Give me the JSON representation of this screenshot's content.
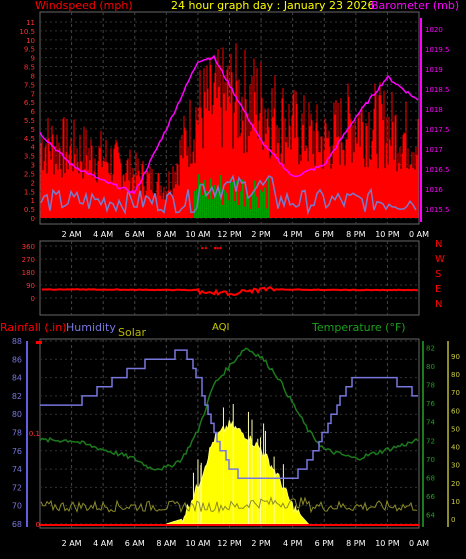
{
  "header": {
    "title": "24 hour graph day : January 23 2026",
    "left_label": "Windspeed (mph)",
    "right_label": "Barometer (mb)"
  },
  "time_axis": [
    "2 AM",
    "4 AM",
    "6 AM",
    "8 AM",
    "10 AM",
    "12 PM",
    "2 PM",
    "4 PM",
    "6 PM",
    "8 PM",
    "10 PM",
    "0 AM"
  ],
  "wind_panel": {
    "y_ticks": [
      0,
      0.5,
      1,
      1.5,
      2,
      2.5,
      3,
      3.5,
      4,
      4.5,
      5,
      5.5,
      6,
      6.5,
      7,
      7.5,
      8,
      8.5,
      9,
      9.5,
      10,
      10.5,
      11
    ],
    "baro_ticks": [
      1015.5,
      1016,
      1016.5,
      1017,
      1017.5,
      1018,
      1018.5,
      1019,
      1019.5,
      1020
    ]
  },
  "dir_panel": {
    "y_ticks": [
      "360",
      "270",
      "180",
      "90",
      "0"
    ],
    "compass": [
      "N",
      "W",
      "S",
      "E",
      "N"
    ]
  },
  "lower_panel": {
    "labels": {
      "rain": "Rainfall (.in)",
      "humidity": "Humidity",
      "solar": "Solar",
      "aqi": "AQI",
      "temp": "Temperature (°F)"
    },
    "hum_ticks": [
      68,
      70,
      72,
      74,
      76,
      78,
      80,
      82,
      84,
      86,
      88
    ],
    "rain_ticks": [
      "0",
      "0.1"
    ],
    "temp_ticks": [
      64,
      66,
      68,
      70,
      72,
      74,
      76,
      78,
      80,
      82
    ],
    "aqi_ticks": [
      0,
      10,
      20,
      30,
      40,
      50,
      60,
      70,
      80,
      90
    ]
  },
  "colors": {
    "wind_gust": "#ff0000",
    "wind_avg": "#7a7acc",
    "wind_green": "#00a000",
    "barometer": "#ff00ff",
    "humidity": "#7777dd",
    "temperature": "#1c7a1c",
    "solar": "#ffff00",
    "aqi": "#8b8b2a"
  },
  "chart_data": [
    {
      "type": "line",
      "series": [
        {
          "name": "Barometer (mb)",
          "x": [
            0,
            2,
            4,
            6,
            8,
            10,
            11,
            14,
            16,
            18,
            20,
            22,
            24
          ],
          "y": [
            1017.4,
            1016.6,
            1016.2,
            1015.9,
            1017.5,
            1019.2,
            1019.3,
            1017.2,
            1016.3,
            1016.6,
            1017.8,
            1018.8,
            1018.2
          ]
        },
        {
          "name": "Windspeed (mph)",
          "x": [
            0,
            2,
            4,
            6,
            8,
            10,
            12,
            14,
            16,
            18,
            20,
            22,
            24
          ],
          "y": [
            5,
            4.5,
            4,
            3,
            2,
            7,
            8,
            7.5,
            6,
            5,
            6.5,
            6,
            5
          ]
        }
      ]
    },
    {
      "type": "line",
      "series": [
        {
          "name": "Wind direction",
          "x": [
            0,
            4,
            8,
            10,
            10.5,
            11,
            12,
            14,
            16,
            20,
            24
          ],
          "y": [
            60,
            58,
            56,
            55,
            20,
            40,
            30,
            60,
            58,
            55,
            55
          ]
        }
      ]
    },
    {
      "type": "line",
      "series": [
        {
          "name": "Humidity",
          "x": [
            0,
            2,
            3,
            4,
            5,
            6,
            7,
            8,
            9,
            10,
            11,
            12,
            13,
            14,
            15,
            16,
            17,
            18,
            19,
            20,
            21,
            22,
            23,
            24
          ],
          "y": [
            81,
            81,
            82,
            83,
            84,
            85,
            86,
            86,
            87,
            84,
            78,
            74,
            73,
            73,
            73,
            73,
            75,
            78,
            82,
            84,
            84,
            84,
            83,
            82
          ]
        },
        {
          "name": "Temperature (°F)",
          "x": [
            0,
            2,
            4,
            6,
            7,
            8,
            9,
            10,
            11,
            12,
            13,
            14,
            15,
            16,
            17,
            18,
            20,
            22,
            24
          ],
          "y": [
            72,
            72,
            71,
            70,
            69,
            69,
            70,
            73,
            78,
            80,
            82,
            81,
            79,
            76,
            73,
            71,
            70,
            71,
            72
          ]
        },
        {
          "name": "Solar",
          "x": [
            0,
            8,
            9,
            10,
            11,
            12,
            13,
            14,
            15,
            16,
            17,
            24
          ],
          "y": [
            0,
            0,
            2,
            15,
            34,
            40,
            36,
            30,
            20,
            7,
            0,
            0
          ]
        },
        {
          "name": "AQI",
          "x": [
            0,
            4,
            8,
            12,
            16,
            20,
            24
          ],
          "y": [
            5,
            6,
            7,
            8,
            7,
            6,
            6
          ]
        }
      ]
    }
  ]
}
